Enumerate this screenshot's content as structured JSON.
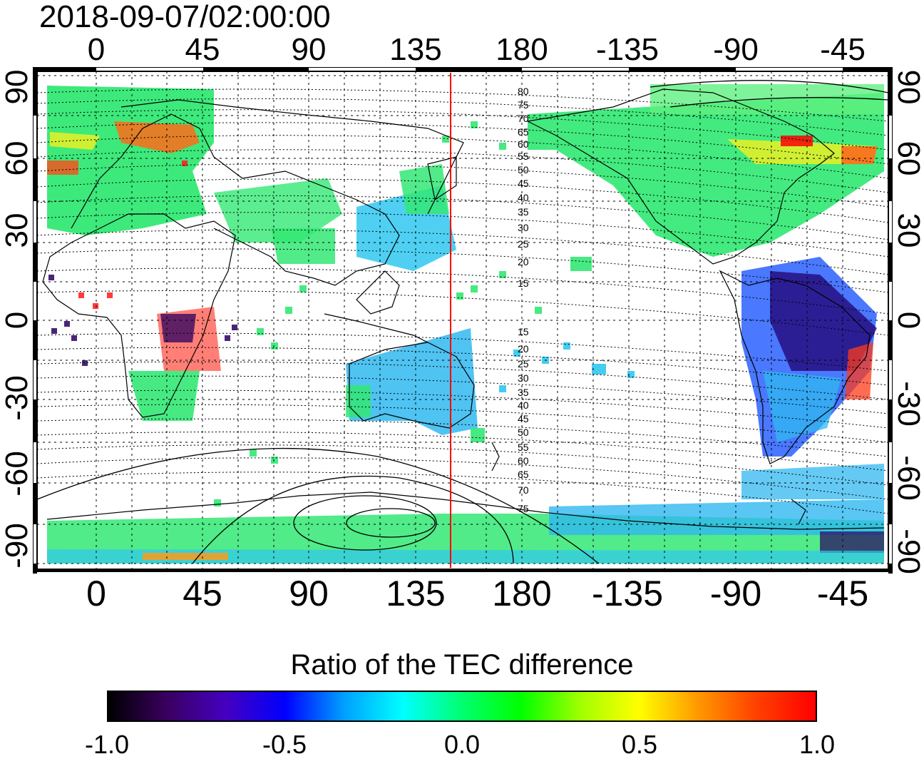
{
  "title": "2018-09-07/02:00:00",
  "top_lon_ticks": [
    "0",
    "45",
    "90",
    "135",
    "180",
    "-135",
    "-90",
    "-45"
  ],
  "bottom_lon_ticks": [
    "0",
    "45",
    "90",
    "135",
    "180",
    "-135",
    "-90",
    "-45"
  ],
  "left_lat_ticks": [
    "90",
    "60",
    "30",
    "0",
    "-30",
    "-60",
    "-90"
  ],
  "right_lat_ticks": [
    "90",
    "60",
    "30",
    "0",
    "-30",
    "-60",
    "-90"
  ],
  "contour_labels_north": [
    "80",
    "75",
    "70",
    "65",
    "60",
    "55",
    "50",
    "45",
    "40",
    "35",
    "30",
    "25",
    "20",
    "15"
  ],
  "contour_labels_south": [
    "15",
    "20",
    "25",
    "30",
    "35",
    "40",
    "45",
    "50",
    "55",
    "60",
    "65",
    "70",
    "75"
  ],
  "colorbar": {
    "title": "Ratio of the TEC difference",
    "ticks": [
      "-1.0",
      "-0.5",
      "0.0",
      "0.5",
      "1.0"
    ],
    "colors": [
      "#000000",
      "#3a0060",
      "#4400c0",
      "#0000ff",
      "#00a0ff",
      "#00ffff",
      "#00ff70",
      "#00ff00",
      "#a0ff00",
      "#ffff00",
      "#ff9900",
      "#ff4000",
      "#ff0000"
    ]
  },
  "map_colors": {
    "background": "#ffffff",
    "grid": "#000000",
    "meridian_marker": "#ff0000"
  }
}
